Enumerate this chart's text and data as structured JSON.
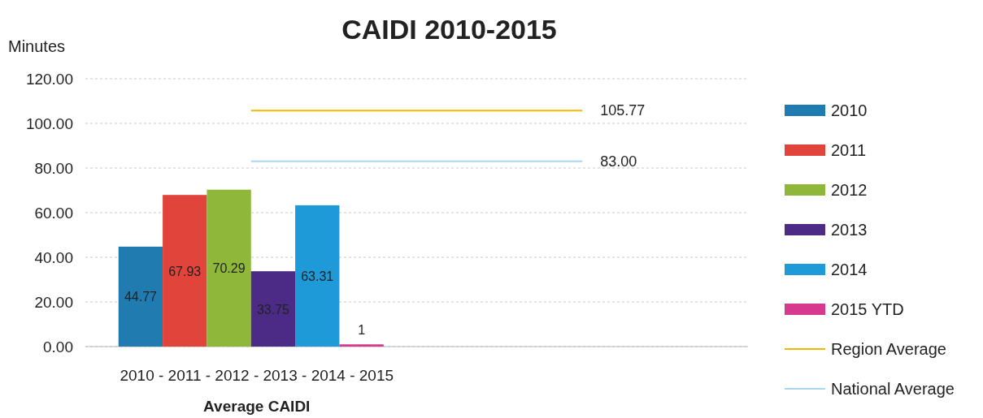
{
  "chart_data": {
    "type": "bar",
    "title": "CAIDI 2010-2015",
    "ylabel": "Minutes",
    "xlabel": "Average CAIDI",
    "categories": [
      "2010 - 2011 - 2012 - 2013 - 2014 - 2015",
      null
    ],
    "series": [
      {
        "name": "2010",
        "color": "#1f7bb0",
        "values": [
          44.77,
          null
        ],
        "value_labels": [
          "44.77",
          null
        ]
      },
      {
        "name": "2011",
        "color": "#e0443a",
        "values": [
          67.93,
          null
        ],
        "value_labels": [
          "67.93",
          null
        ]
      },
      {
        "name": "2012",
        "color": "#8fb83a",
        "values": [
          70.29,
          null
        ],
        "value_labels": [
          "70.29",
          null
        ]
      },
      {
        "name": "2013",
        "color": "#4b2b86",
        "values": [
          33.75,
          null
        ],
        "value_labels": [
          "33.75",
          null
        ]
      },
      {
        "name": "2014",
        "color": "#1e9ad8",
        "values": [
          63.31,
          null
        ],
        "value_labels": [
          "63.31",
          null
        ]
      },
      {
        "name": "2015 YTD",
        "color": "#d63a8f",
        "values": [
          1,
          null
        ],
        "value_labels": [
          "1",
          null
        ]
      },
      {
        "name": "Region Average",
        "type": "line",
        "color": "#f0b800",
        "values": [
          105.77,
          105.77
        ],
        "value_labels": [
          null,
          "105.77"
        ]
      },
      {
        "name": "National Average",
        "type": "line",
        "color": "#a8d8f0",
        "values": [
          83,
          83
        ],
        "value_labels": [
          null,
          "83.00"
        ]
      }
    ],
    "ylim": [
      0,
      120
    ],
    "yticks": [
      {
        "value": 0,
        "label": "0.00"
      },
      {
        "value": 20,
        "label": "20.00"
      },
      {
        "value": 40,
        "label": "40.00"
      },
      {
        "value": 60,
        "label": "60.00"
      },
      {
        "value": 80,
        "label": "80.00"
      },
      {
        "value": 100,
        "label": "100.00"
      },
      {
        "value": 120,
        "label": "120.00"
      }
    ],
    "grid": "y",
    "legend": "right"
  }
}
